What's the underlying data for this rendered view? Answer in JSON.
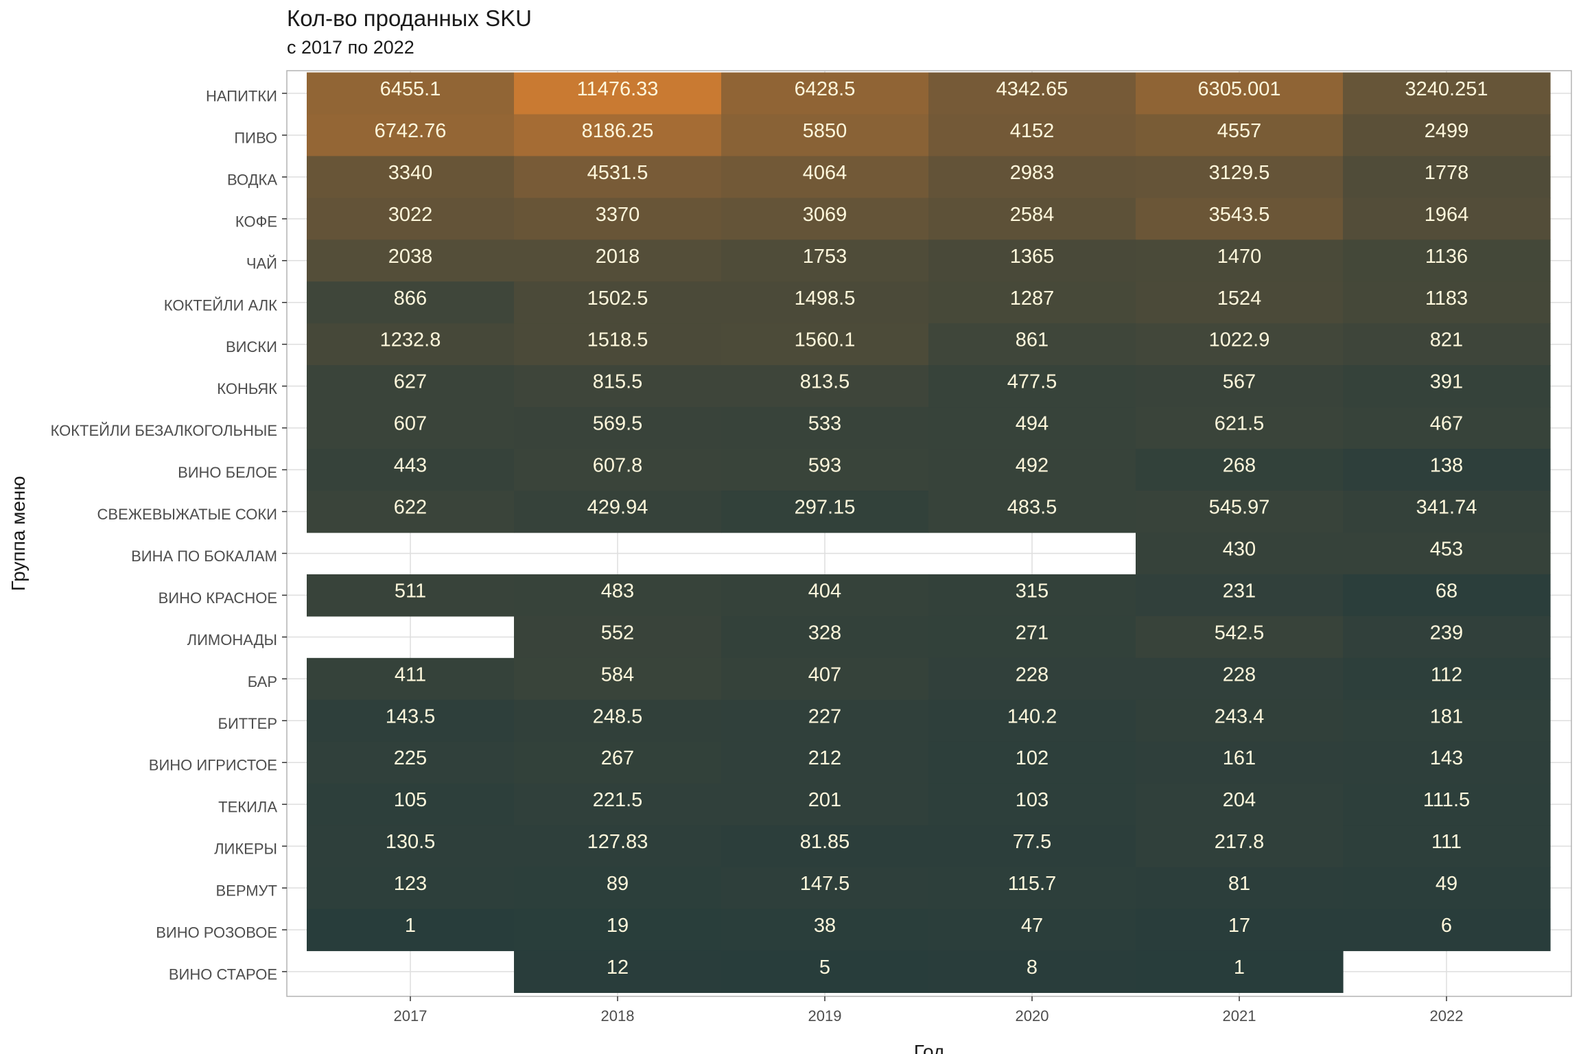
{
  "chart_data": {
    "type": "heatmap",
    "title": "Кол-во проданных SKU",
    "subtitle": "с 2017 по 2022",
    "xlabel": "Год",
    "ylabel": "Группа меню",
    "x": [
      "2017",
      "2018",
      "2019",
      "2020",
      "2021",
      "2022"
    ],
    "y": [
      "НАПИТКИ",
      "ПИВО",
      "ВОДКА",
      "КОФЕ",
      "ЧАЙ",
      "КОКТЕЙЛИ АЛК",
      "ВИСКИ",
      "КОНЬЯК",
      "КОКТЕЙЛИ БЕЗАЛКОГОЛЬНЫЕ",
      "ВИНО БЕЛОЕ",
      "СВЕЖЕВЫЖАТЫЕ СОКИ",
      "ВИНА ПО БОКАЛАМ",
      "ВИНО КРАСНОЕ",
      "ЛИМОНАДЫ",
      "БАР",
      "БИТТЕР",
      "ВИНО ИГРИСТОЕ",
      "ТЕКИЛА",
      "ЛИКЕРЫ",
      "ВЕРМУТ",
      "ВИНО РОЗОВОЕ",
      "ВИНО СТАРОЕ"
    ],
    "values": [
      [
        "6455.1",
        "11476.33",
        "6428.5",
        "4342.65",
        "6305.001",
        "3240.251"
      ],
      [
        "6742.76",
        "8186.25",
        "5850",
        "4152",
        "4557",
        "2499"
      ],
      [
        "3340",
        "4531.5",
        "4064",
        "2983",
        "3129.5",
        "1778"
      ],
      [
        "3022",
        "3370",
        "3069",
        "2584",
        "3543.5",
        "1964"
      ],
      [
        "2038",
        "2018",
        "1753",
        "1365",
        "1470",
        "1136"
      ],
      [
        "866",
        "1502.5",
        "1498.5",
        "1287",
        "1524",
        "1183"
      ],
      [
        "1232.8",
        "1518.5",
        "1560.1",
        "861",
        "1022.9",
        "821"
      ],
      [
        "627",
        "815.5",
        "813.5",
        "477.5",
        "567",
        "391"
      ],
      [
        "607",
        "569.5",
        "533",
        "494",
        "621.5",
        "467"
      ],
      [
        "443",
        "607.8",
        "593",
        "492",
        "268",
        "138"
      ],
      [
        "622",
        "429.94",
        "297.15",
        "483.5",
        "545.97",
        "341.74"
      ],
      [
        null,
        null,
        null,
        null,
        "430",
        "453"
      ],
      [
        "511",
        "483",
        "404",
        "315",
        "231",
        "68"
      ],
      [
        null,
        "552",
        "328",
        "271",
        "542.5",
        "239"
      ],
      [
        "411",
        "584",
        "407",
        "228",
        "228",
        "112"
      ],
      [
        "143.5",
        "248.5",
        "227",
        "140.2",
        "243.4",
        "181"
      ],
      [
        "225",
        "267",
        "212",
        "102",
        "161",
        "143"
      ],
      [
        "105",
        "221.5",
        "201",
        "103",
        "204",
        "111.5"
      ],
      [
        "130.5",
        "127.83",
        "81.85",
        "77.5",
        "217.8",
        "111"
      ],
      [
        "123",
        "89",
        "147.5",
        "115.7",
        "81",
        "49"
      ],
      [
        "1",
        "19",
        "38",
        "47",
        "17",
        "6"
      ],
      [
        null,
        "12",
        "5",
        "8",
        "1",
        null
      ]
    ],
    "color_low": "#283d3b",
    "color_high": "#c97a32",
    "grid": true,
    "legend": "none"
  }
}
